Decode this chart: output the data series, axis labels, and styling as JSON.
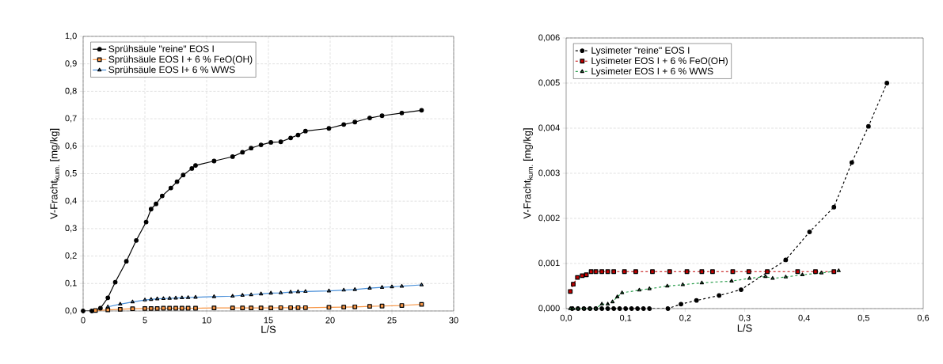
{
  "chart_data": [
    {
      "type": "line",
      "xlabel": "L/S",
      "ylabel": "V-Fracht$_{kum.}$ [mg/kg]",
      "xlim": [
        0,
        30
      ],
      "ylim": [
        0,
        1
      ],
      "xticks": [
        0,
        5,
        10,
        15,
        20,
        25,
        30
      ],
      "yticks": [
        {
          "value": 0,
          "label": "0,0"
        },
        {
          "value": 0.1,
          "label": "0,1"
        },
        {
          "value": 0.2,
          "label": "0,2"
        },
        {
          "value": 0.3,
          "label": "0,3"
        },
        {
          "value": 0.4,
          "label": "0,4"
        },
        {
          "value": 0.5,
          "label": "0,5"
        },
        {
          "value": 0.6,
          "label": "0,6"
        },
        {
          "value": 0.7,
          "label": "0,7"
        },
        {
          "value": 0.8,
          "label": "0,8"
        },
        {
          "value": 0.9,
          "label": "0,9"
        },
        {
          "value": 1,
          "label": "1,0"
        }
      ],
      "grid": true,
      "legend": "top left",
      "line_style": "solid",
      "series": [
        {
          "name": "Sprühsäule \"reine\" EOS I",
          "color": "#000000",
          "marker": "circle",
          "x": [
            0,
            0.7,
            1.4,
            2.0,
            2.6,
            3.5,
            4.3,
            5.1,
            5.5,
            5.9,
            6.4,
            7.1,
            7.6,
            8.1,
            8.8,
            9.1,
            10.6,
            12.1,
            12.9,
            13.6,
            14.4,
            15.2,
            16.0,
            16.8,
            17.4,
            18.0,
            19.9,
            21.1,
            22.0,
            23.2,
            24.2,
            25.8,
            27.4
          ],
          "values": [
            0,
            0,
            0.01,
            0.048,
            0.105,
            0.181,
            0.257,
            0.324,
            0.371,
            0.39,
            0.419,
            0.448,
            0.471,
            0.495,
            0.519,
            0.53,
            0.546,
            0.562,
            0.578,
            0.593,
            0.605,
            0.614,
            0.616,
            0.63,
            0.641,
            0.655,
            0.665,
            0.679,
            0.688,
            0.703,
            0.711,
            0.721,
            0.731
          ]
        },
        {
          "name": "Sprühsäule EOS I + 6 % FeO(OH)",
          "color": "#f79646",
          "marker": "square",
          "x": [
            1,
            2,
            3,
            4,
            5,
            5.5,
            6,
            6.5,
            7,
            7.5,
            8,
            8.5,
            9.1,
            10.6,
            12.1,
            12.9,
            13.6,
            14.4,
            15.2,
            16.0,
            16.8,
            17.4,
            18.0,
            19.9,
            21.1,
            22.0,
            23.2,
            24.2,
            25.8,
            27.4
          ],
          "values": [
            0.002,
            0.004,
            0.006,
            0.008,
            0.009,
            0.009,
            0.009,
            0.01,
            0.01,
            0.01,
            0.01,
            0.01,
            0.01,
            0.011,
            0.011,
            0.011,
            0.011,
            0.011,
            0.011,
            0.012,
            0.012,
            0.012,
            0.012,
            0.013,
            0.014,
            0.015,
            0.017,
            0.018,
            0.02,
            0.024
          ]
        },
        {
          "name": "Sprühsäule EOS I+ 6 % WWS",
          "color": "#4a90d9",
          "marker": "triangle",
          "x": [
            2,
            3,
            4,
            5,
            5.5,
            6,
            6.5,
            7,
            7.5,
            8,
            8.5,
            9.1,
            10.6,
            12.1,
            12.9,
            13.6,
            14.4,
            15.2,
            16.0,
            16.8,
            17.4,
            18.0,
            19.9,
            21.1,
            22.0,
            23.2,
            24.2,
            25.0,
            25.8,
            27.4
          ],
          "values": [
            0.015,
            0.025,
            0.033,
            0.04,
            0.042,
            0.044,
            0.045,
            0.046,
            0.047,
            0.048,
            0.049,
            0.05,
            0.052,
            0.054,
            0.057,
            0.059,
            0.062,
            0.065,
            0.066,
            0.069,
            0.07,
            0.071,
            0.073,
            0.076,
            0.078,
            0.083,
            0.086,
            0.088,
            0.09,
            0.095
          ]
        }
      ]
    },
    {
      "type": "line",
      "xlabel": "L/S",
      "ylabel": "V-Fracht$_{kum.}$ [mg/kg]",
      "xlim": [
        0,
        0.6
      ],
      "ylim": [
        0,
        0.006
      ],
      "xticks": [
        {
          "value": 0,
          "label": "0,0"
        },
        {
          "value": 0.1,
          "label": "0,1"
        },
        {
          "value": 0.2,
          "label": "0,2"
        },
        {
          "value": 0.3,
          "label": "0,3"
        },
        {
          "value": 0.4,
          "label": "0,4"
        },
        {
          "value": 0.5,
          "label": "0,5"
        },
        {
          "value": 0.6,
          "label": "0,6"
        }
      ],
      "yticks": [
        {
          "value": 0,
          "label": "0,000"
        },
        {
          "value": 0.001,
          "label": "0,001"
        },
        {
          "value": 0.002,
          "label": "0,002"
        },
        {
          "value": 0.003,
          "label": "0,003"
        },
        {
          "value": 0.004,
          "label": "0,004"
        },
        {
          "value": 0.005,
          "label": "0,005"
        },
        {
          "value": 0.006,
          "label": "0,006"
        }
      ],
      "grid": "y",
      "legend": "top left",
      "line_style": "dashed",
      "series": [
        {
          "name": "Lysimeter \"reine\" EOS I",
          "color": "#000000",
          "marker": "circle",
          "x": [
            0.01,
            0.02,
            0.03,
            0.04,
            0.05,
            0.06,
            0.07,
            0.08,
            0.09,
            0.1,
            0.11,
            0.12,
            0.13,
            0.14,
            0.171,
            0.193,
            0.219,
            0.257,
            0.294,
            0.369,
            0.409,
            0.45,
            0.48,
            0.508,
            0.539
          ],
          "values": [
            0,
            0,
            0,
            0,
            0,
            0,
            0,
            0,
            0,
            0,
            0,
            0,
            0,
            0,
            0,
            0.0001,
            0.00018,
            0.00029,
            0.00042,
            0.00108,
            0.0017,
            0.00225,
            0.00324,
            0.00404,
            0.005
          ]
        },
        {
          "name": "Lysimeter EOS I + 6 % FeO(OH)",
          "color": "#c00000",
          "marker": "square",
          "x": [
            0.007,
            0.012,
            0.019,
            0.027,
            0.034,
            0.042,
            0.05,
            0.06,
            0.07,
            0.08,
            0.098,
            0.117,
            0.145,
            0.174,
            0.203,
            0.228,
            0.246,
            0.28,
            0.307,
            0.338,
            0.389,
            0.419,
            0.45
          ],
          "values": [
            0.00038,
            0.00054,
            0.00069,
            0.00073,
            0.00075,
            0.00082,
            0.00082,
            0.00082,
            0.00082,
            0.00082,
            0.00082,
            0.00082,
            0.00082,
            0.00082,
            0.00082,
            0.00082,
            0.00082,
            0.00082,
            0.00082,
            0.00082,
            0.00082,
            0.00082,
            0.00082
          ]
        },
        {
          "name": "Lysimeter EOS I + 6 % WWS",
          "color": "#2e9e4f",
          "marker": "triangle",
          "x": [
            0.007,
            0.012,
            0.02,
            0.03,
            0.04,
            0.05,
            0.06,
            0.07,
            0.078,
            0.086,
            0.094,
            0.123,
            0.14,
            0.17,
            0.196,
            0.228,
            0.278,
            0.308,
            0.335,
            0.347,
            0.369,
            0.397,
            0.429,
            0.458
          ],
          "values": [
            0,
            0,
            0,
            0,
            0,
            0,
            0.0001,
            0.0001,
            0.00015,
            0.00026,
            0.00035,
            0.00041,
            0.00044,
            0.0005,
            0.00053,
            0.00057,
            0.00061,
            0.00067,
            0.00071,
            0.00067,
            0.0007,
            0.00075,
            0.00079,
            0.00084
          ]
        }
      ]
    }
  ]
}
